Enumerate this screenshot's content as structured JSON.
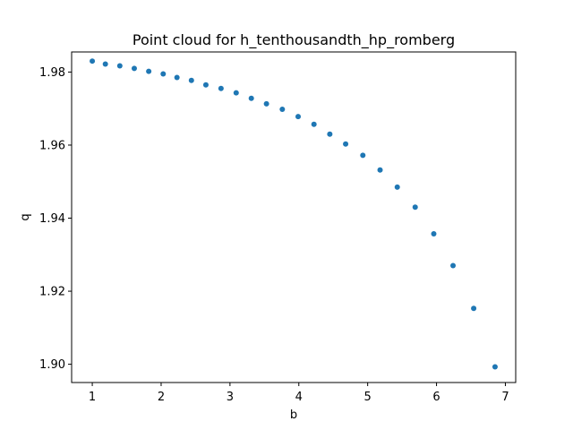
{
  "chart_data": {
    "type": "scatter",
    "title": "Point cloud for h_tenthousandth_hp_romberg",
    "xlabel": "b",
    "ylabel": "q",
    "xlim": [
      0.7,
      7.15
    ],
    "ylim": [
      1.895,
      1.9855
    ],
    "xticks": [
      1,
      2,
      3,
      4,
      5,
      6,
      7
    ],
    "yticks": [
      1.9,
      1.92,
      1.94,
      1.96,
      1.98
    ],
    "xtick_labels": [
      "1",
      "2",
      "3",
      "4",
      "5",
      "6",
      "7"
    ],
    "ytick_labels": [
      "1.90",
      "1.92",
      "1.94",
      "1.96",
      "1.98"
    ],
    "grid": false,
    "marker_color": "#1f77b4",
    "series": [
      {
        "x": [
          1.0,
          1.19,
          1.4,
          1.61,
          1.82,
          2.03,
          2.23,
          2.44,
          2.65,
          2.87,
          3.09,
          3.31,
          3.53,
          3.76,
          3.99,
          4.22,
          4.45,
          4.68,
          4.93,
          5.18,
          5.43,
          5.69,
          5.96,
          6.24,
          6.54,
          6.85
        ],
        "y": [
          1.983,
          1.9822,
          1.9817,
          1.981,
          1.9802,
          1.9795,
          1.9785,
          1.9777,
          1.9765,
          1.9755,
          1.9743,
          1.9728,
          1.9713,
          1.9698,
          1.9678,
          1.9657,
          1.963,
          1.9603,
          1.9572,
          1.9532,
          1.9485,
          1.943,
          1.9357,
          1.927,
          1.9153,
          1.8993
        ]
      }
    ]
  }
}
